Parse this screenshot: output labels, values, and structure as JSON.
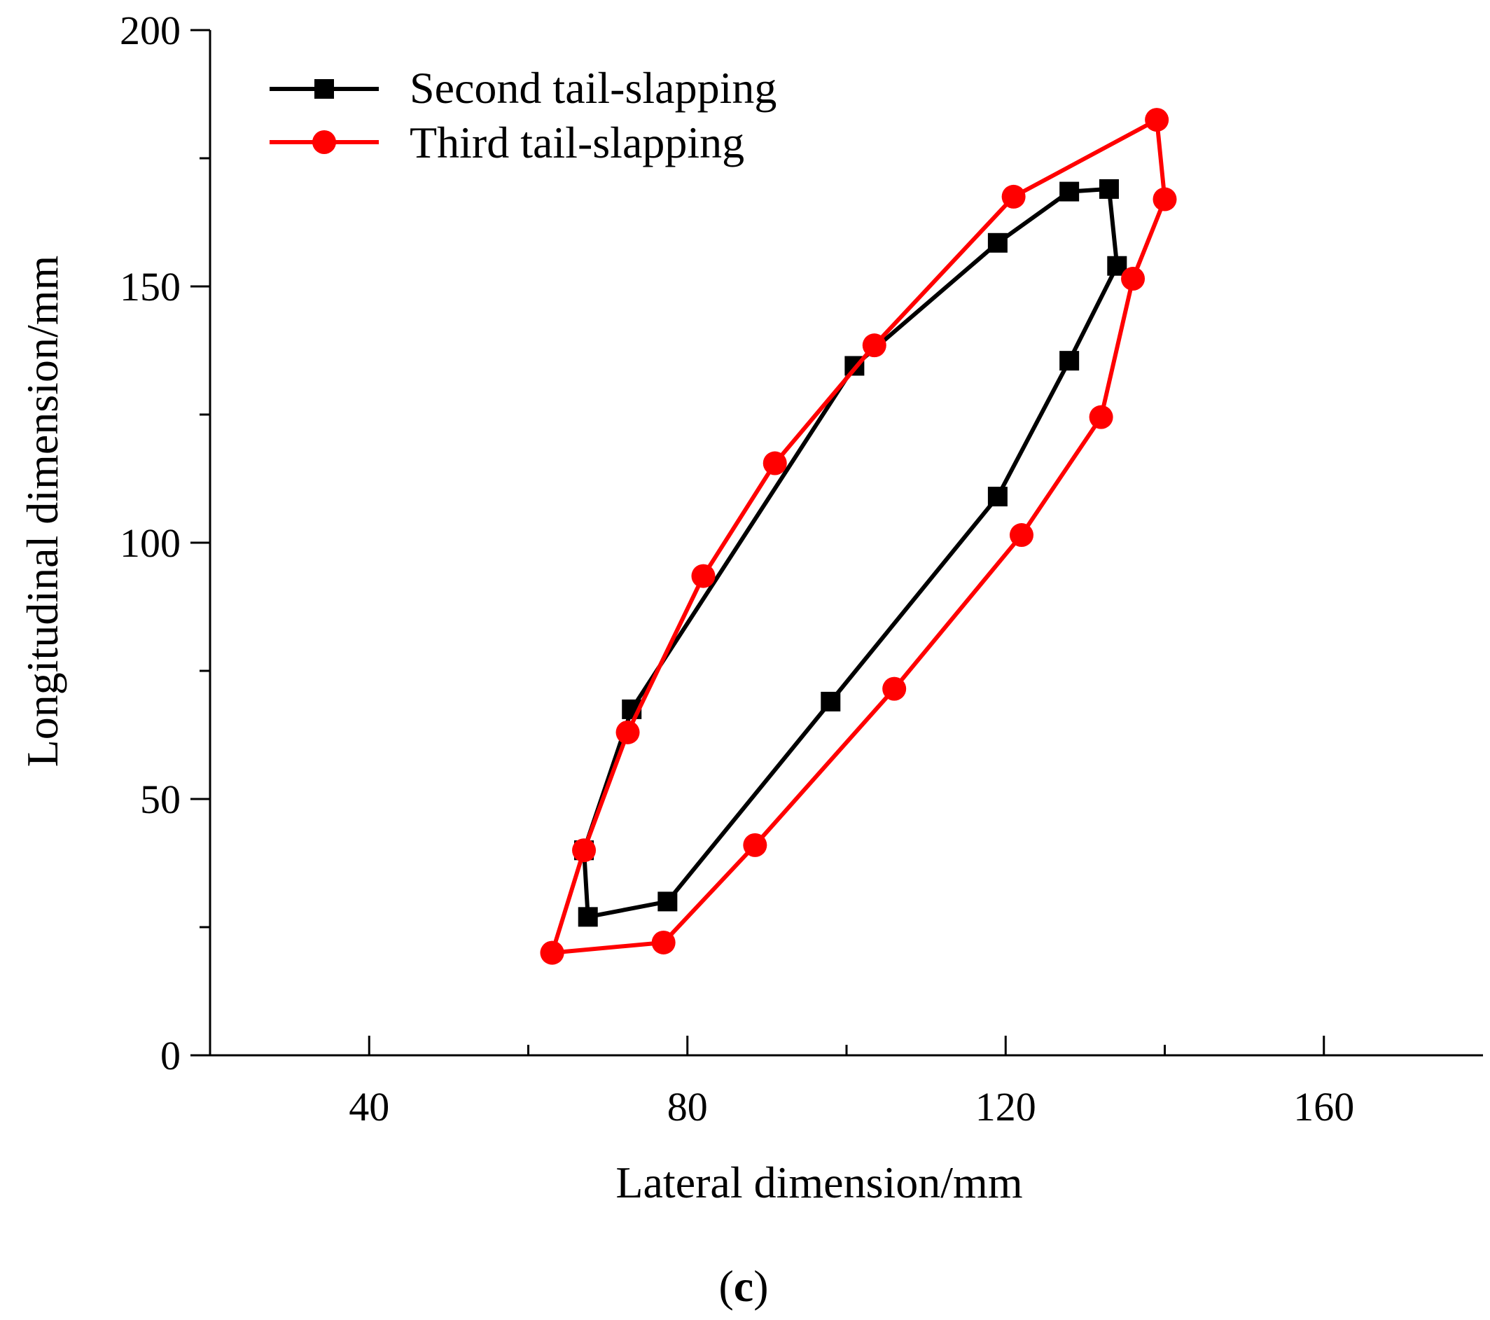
{
  "chart_data": {
    "type": "line",
    "xlabel": "Lateral dimension/mm",
    "ylabel": "Longitudinal dimension/mm",
    "xlim": [
      20,
      180
    ],
    "ylim": [
      0,
      200
    ],
    "xticks": [
      40,
      80,
      120,
      160
    ],
    "yticks": [
      0,
      50,
      100,
      150,
      200
    ],
    "x_minor_ticks": [
      60,
      100,
      140
    ],
    "y_minor_ticks": [
      25,
      75,
      125,
      175
    ],
    "legend_position": "top-left",
    "grid": false,
    "series": [
      {
        "name": "Second tail-slapping",
        "color": "#000000",
        "marker": "square",
        "points": [
          [
            67,
            40
          ],
          [
            67.5,
            27
          ],
          [
            77.5,
            30
          ],
          [
            98,
            69
          ],
          [
            119,
            109
          ],
          [
            128,
            135.5
          ],
          [
            134,
            154
          ],
          [
            133,
            169
          ],
          [
            128,
            168.5
          ],
          [
            119,
            158.5
          ],
          [
            101,
            134.5
          ],
          [
            73,
            67.5
          ],
          [
            67,
            40
          ]
        ]
      },
      {
        "name": "Third tail-slapping",
        "color": "#ff0000",
        "marker": "circle",
        "points": [
          [
            63,
            20
          ],
          [
            77,
            22
          ],
          [
            88.5,
            41
          ],
          [
            106,
            71.5
          ],
          [
            122,
            101.5
          ],
          [
            132,
            124.5
          ],
          [
            136,
            151.5
          ],
          [
            140,
            167
          ],
          [
            139,
            182.5
          ],
          [
            121,
            167.5
          ],
          [
            103.5,
            138.5
          ],
          [
            91,
            115.5
          ],
          [
            82,
            93.5
          ],
          [
            72.5,
            63
          ],
          [
            67,
            40
          ],
          [
            63,
            20
          ]
        ]
      }
    ]
  },
  "panel_label": {
    "open": "(",
    "letter": "c",
    "close": ")"
  }
}
